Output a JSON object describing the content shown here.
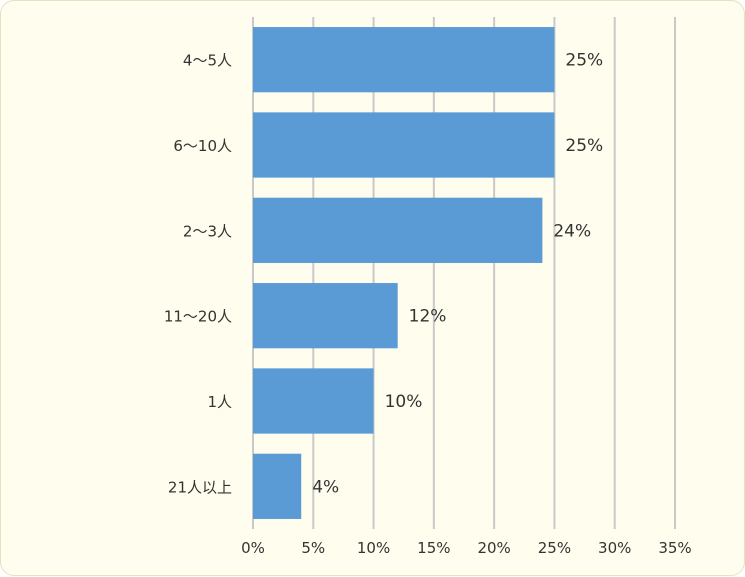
{
  "chart_data": {
    "type": "bar",
    "orientation": "horizontal",
    "categories": [
      "4〜5人",
      "6〜10人",
      "2〜3人",
      "11〜20人",
      "1人",
      "21人以上"
    ],
    "values": [
      25,
      25,
      24,
      12,
      10,
      4
    ],
    "data_labels": [
      "25%",
      "25%",
      "24%",
      "12%",
      "10%",
      "4%"
    ],
    "title": "",
    "xlabel": "",
    "ylabel": "",
    "xlim": [
      0,
      35
    ],
    "x_ticks": [
      0,
      5,
      10,
      15,
      20,
      25,
      30,
      35
    ],
    "x_tick_labels": [
      "0%",
      "5%",
      "10%",
      "15%",
      "20%",
      "25%",
      "30%",
      "35%"
    ],
    "grid": "vertical",
    "legend": "none",
    "colors": {
      "bar": "#5b9bd5",
      "grid": "#c9c9c9",
      "background": "#fefdee",
      "text": "#333333"
    }
  }
}
